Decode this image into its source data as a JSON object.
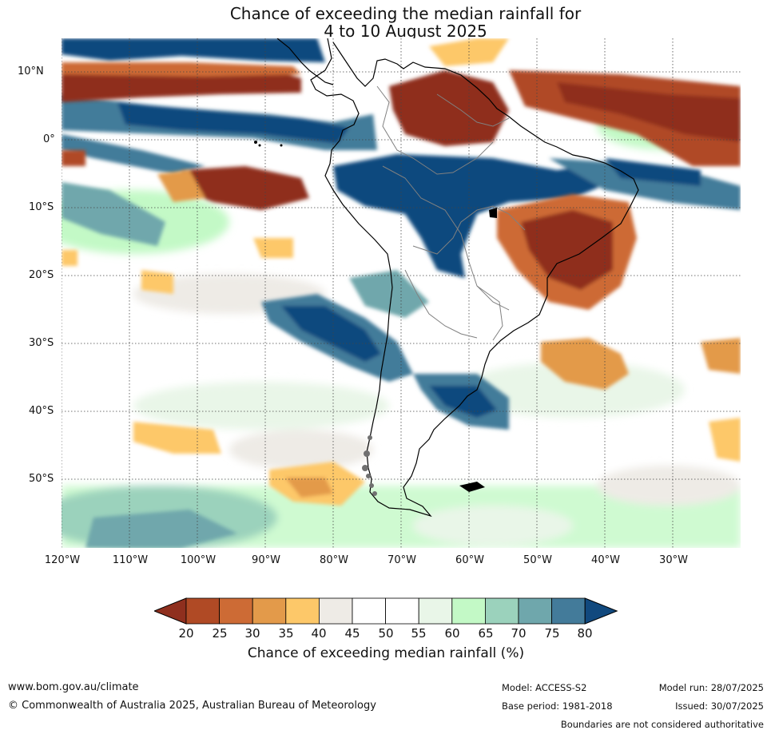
{
  "title": {
    "line1": "Chance of exceeding the median rainfall for",
    "line2": "4 to 10 August 2025"
  },
  "map": {
    "lat_labels": [
      "10°N",
      "0°",
      "10°S",
      "20°S",
      "30°S",
      "40°S",
      "50°S"
    ],
    "lon_labels": [
      "120°W",
      "110°W",
      "100°W",
      "90°W",
      "80°W",
      "70°W",
      "60°W",
      "50°W",
      "40°W",
      "30°W"
    ],
    "grid": "dotted"
  },
  "colorbar": {
    "ticks": [
      "20",
      "25",
      "30",
      "35",
      "40",
      "45",
      "50",
      "55",
      "60",
      "65",
      "70",
      "75",
      "80"
    ],
    "colors": [
      "#8f2f1e",
      "#b04a25",
      "#cd6b35",
      "#e39a4a",
      "#fdc869",
      "#eeebe6",
      "#ffffff",
      "#ffffff",
      "#e9f6e8",
      "#c3f9c6",
      "#9bd2bc",
      "#6fa7ac",
      "#437b9a",
      "#11497e"
    ],
    "label": "Chance of exceeding median rainfall (%)"
  },
  "footer": {
    "website": "www.bom.gov.au/climate",
    "copyright": "© Commonwealth of Australia 2025, Australian Bureau of Meteorology",
    "model": "Model: ACCESS-S2",
    "base_period": "Base period: 1981-2018",
    "model_run": "Model run: 28/07/2025",
    "issued": "Issued: 30/07/2025",
    "disclaimer": "Boundaries are not considered authoritative"
  }
}
